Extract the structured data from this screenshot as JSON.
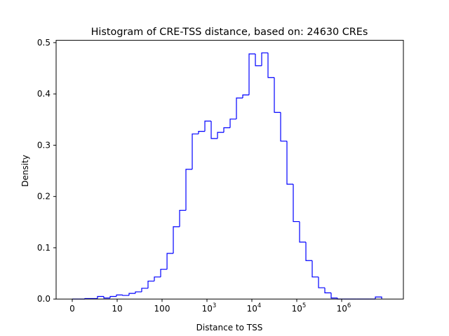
{
  "chart_data": {
    "type": "histogram-step",
    "title": "Histogram of CRE-TSS distance, based on: 24630 CREs",
    "xlabel": "Distance to TSS",
    "ylabel": "Density",
    "x_scale": "log10(x+1)",
    "ylim": [
      0,
      0.5015
    ],
    "grid": false,
    "line_color": "#0000ff",
    "x_ticks": [
      {
        "value": 0,
        "base": "0",
        "exp": ""
      },
      {
        "value": 9,
        "base": "10",
        "exp": ""
      },
      {
        "value": 99,
        "base": "100",
        "exp": ""
      },
      {
        "value": 999,
        "base": "10",
        "exp": "3"
      },
      {
        "value": 9999,
        "base": "10",
        "exp": "4"
      },
      {
        "value": 99999,
        "base": "10",
        "exp": "5"
      },
      {
        "value": 999999,
        "base": "10",
        "exp": "6"
      }
    ],
    "y_ticks": [
      {
        "value": 0,
        "label": "0.0"
      },
      {
        "value": 0.1,
        "label": "0.1"
      },
      {
        "value": 0.2,
        "label": "0.2"
      },
      {
        "value": 0.3,
        "label": "0.3"
      },
      {
        "value": 0.4,
        "label": "0.4"
      },
      {
        "value": 0.5,
        "label": "0.5"
      }
    ],
    "bin_edges": [
      0,
      0.38,
      0.91,
      1.64,
      2.65,
      4.05,
      5.98,
      8.65,
      12.3,
      17.4,
      24.5,
      34.2,
      47.7,
      66.3,
      92.1,
      128,
      177,
      245,
      339,
      469,
      648,
      897,
      1241,
      1716,
      2371,
      3279,
      4532,
      6266,
      8662,
      11975,
      16553,
      22883,
      31633,
      43730,
      60453,
      83570,
      115530,
      159710,
      220790,
      305220,
      421930,
      583290,
      806340,
      1114700,
      1541000,
      2130200,
      2944800,
      4070900,
      5627700,
      7779900
    ],
    "density": [
      0,
      0,
      0.001,
      0.001,
      0.005,
      0.002,
      0.005,
      0.008,
      0.007,
      0.011,
      0.014,
      0.021,
      0.035,
      0.043,
      0.058,
      0.089,
      0.141,
      0.173,
      0.253,
      0.322,
      0.327,
      0.347,
      0.313,
      0.325,
      0.334,
      0.351,
      0.392,
      0.398,
      0.478,
      0.455,
      0.48,
      0.432,
      0.364,
      0.308,
      0.224,
      0.151,
      0.111,
      0.075,
      0.043,
      0.022,
      0.012,
      0.002,
      0,
      0,
      0,
      0,
      0,
      0,
      0.004
    ]
  }
}
